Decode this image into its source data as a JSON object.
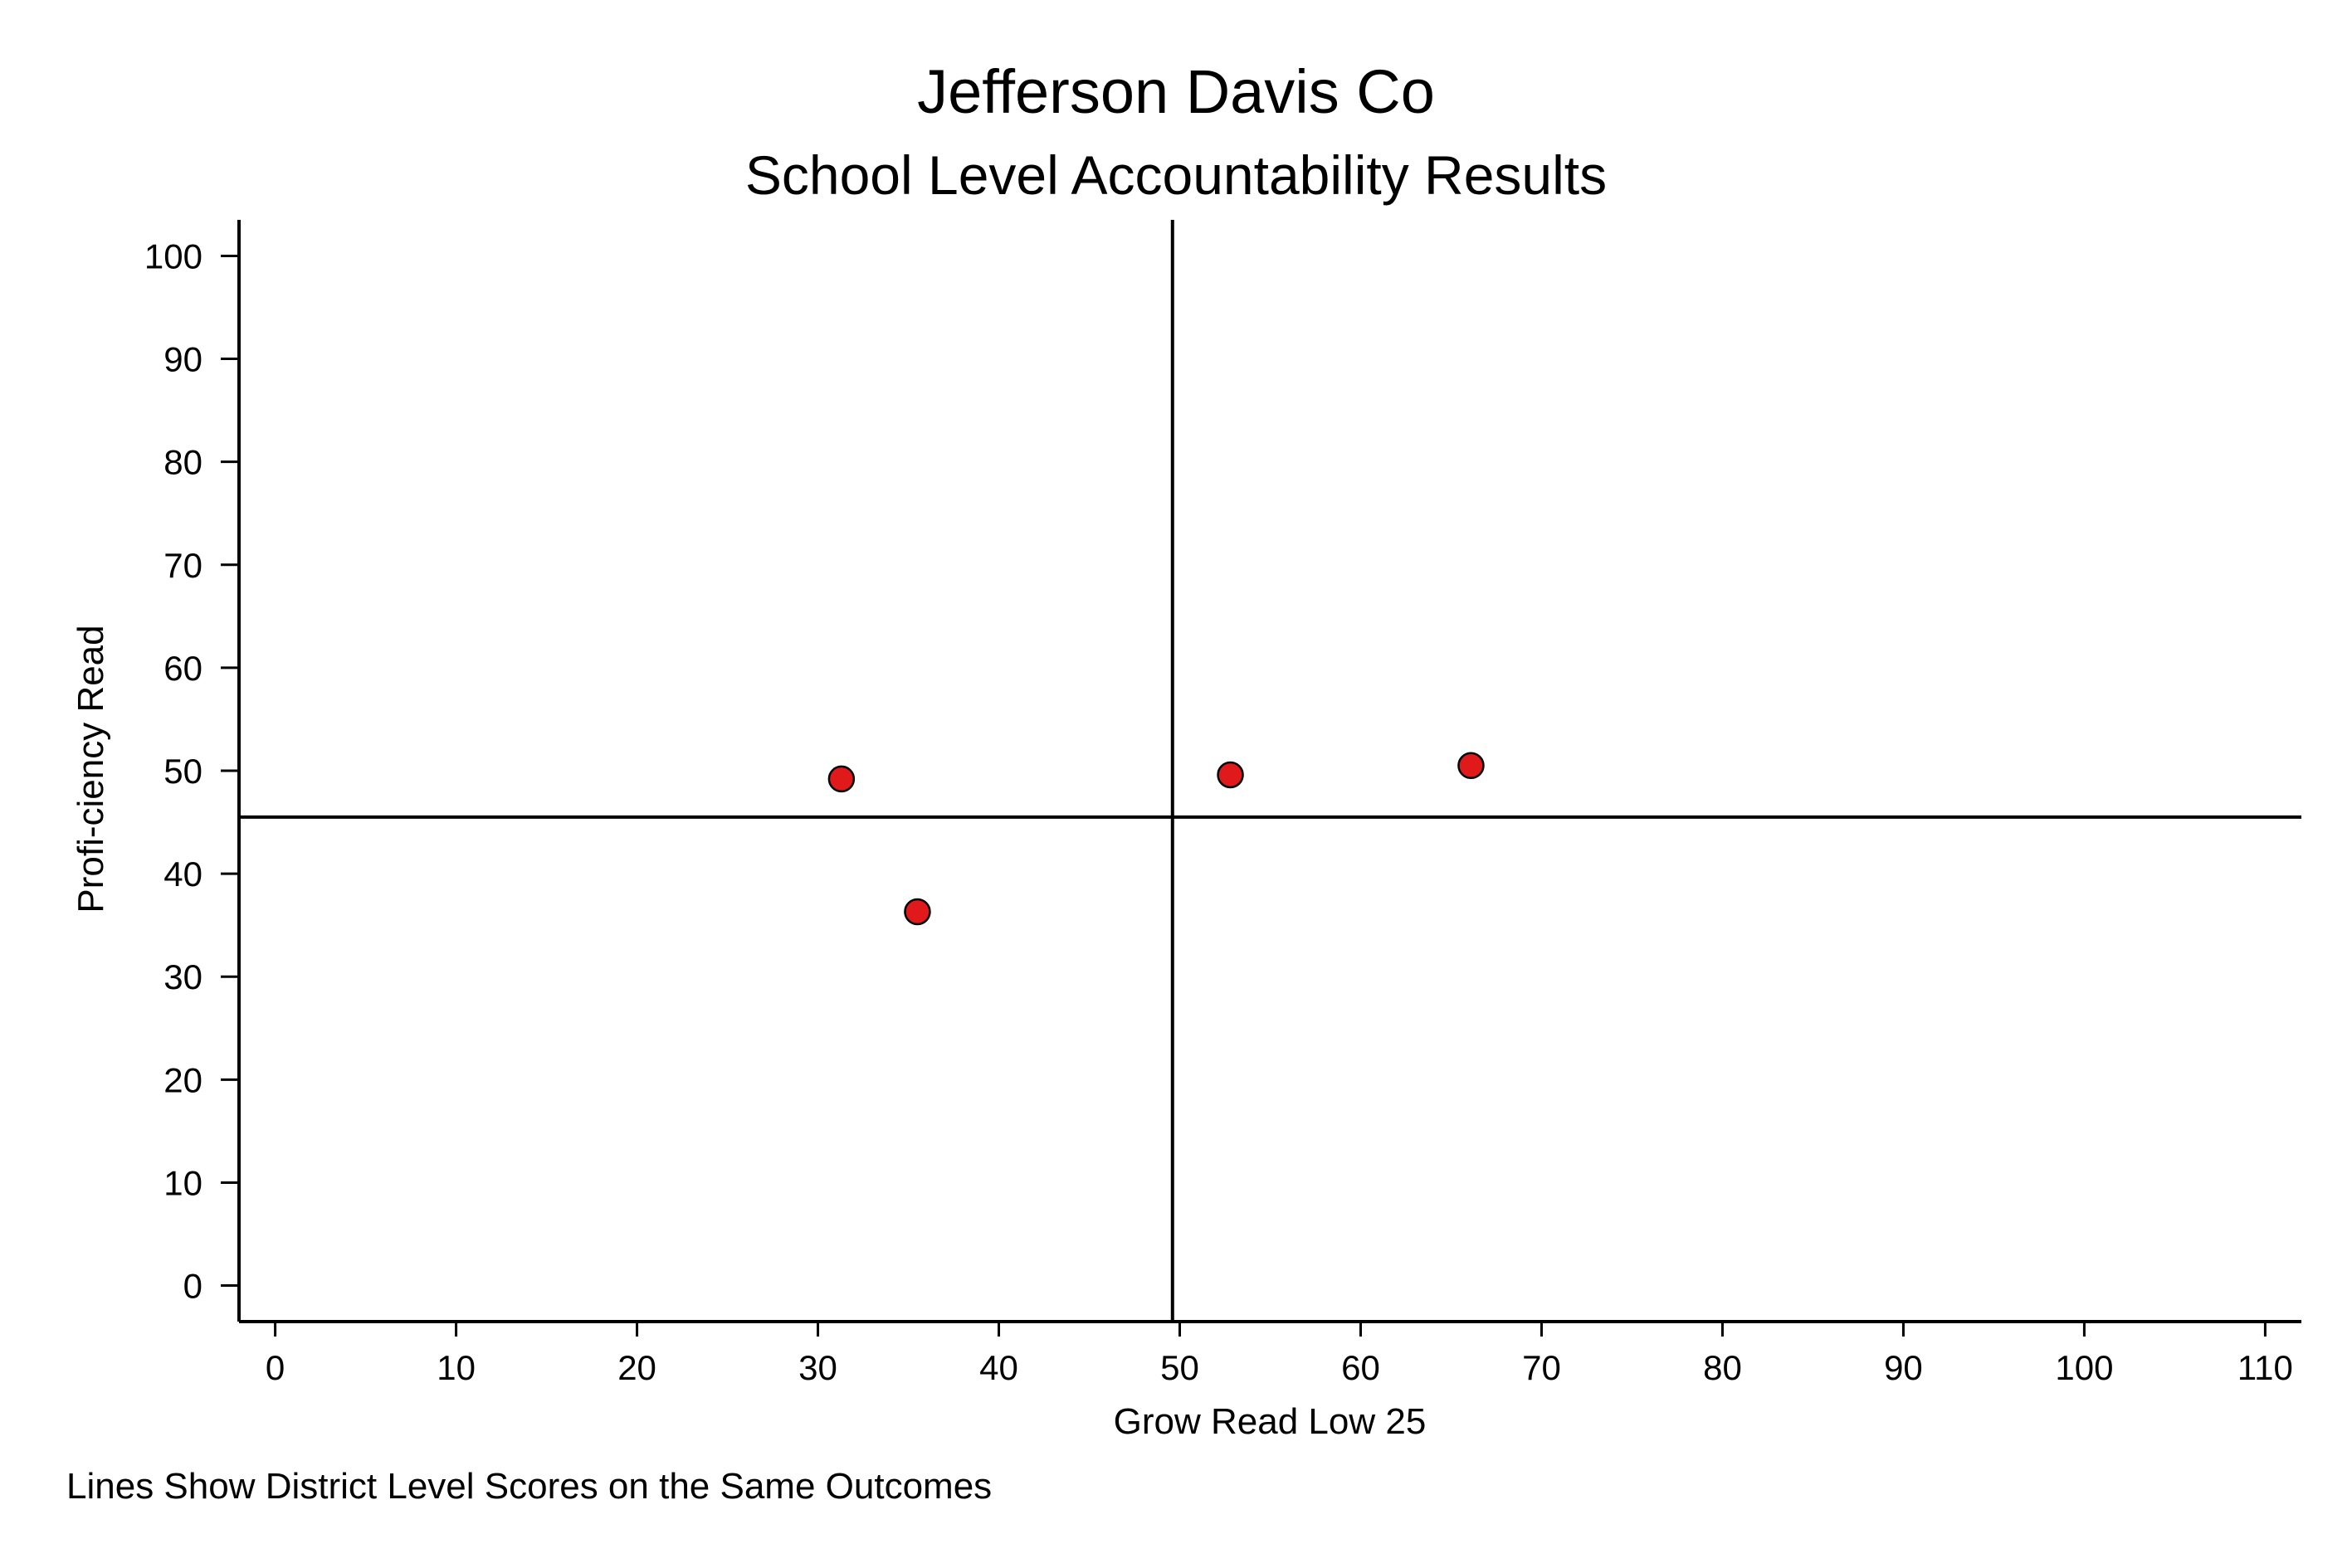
{
  "chart_data": {
    "type": "scatter",
    "title": "Jefferson Davis Co",
    "subtitle": "School Level Accountability Results",
    "xlabel": "Grow Read Low 25",
    "ylabel": "Profi-ciency Read",
    "note": "Lines Show District Level Scores on the Same Outcomes",
    "xlim": [
      -2,
      112
    ],
    "ylim": [
      -3.5,
      103.5
    ],
    "x_ticks": [
      0,
      10,
      20,
      30,
      40,
      50,
      60,
      70,
      80,
      90,
      100,
      110
    ],
    "y_ticks": [
      0,
      10,
      20,
      30,
      40,
      50,
      60,
      70,
      80,
      90,
      100
    ],
    "grid": false,
    "reference_lines": {
      "vertical_x": 49.6,
      "horizontal_y": 45.5
    },
    "marker_color": "#e0191b",
    "series": [
      {
        "points": [
          {
            "x": 31.3,
            "y": 49.2
          },
          {
            "x": 35.5,
            "y": 36.3
          },
          {
            "x": 52.8,
            "y": 49.6
          },
          {
            "x": 66.1,
            "y": 50.5
          }
        ]
      }
    ]
  }
}
